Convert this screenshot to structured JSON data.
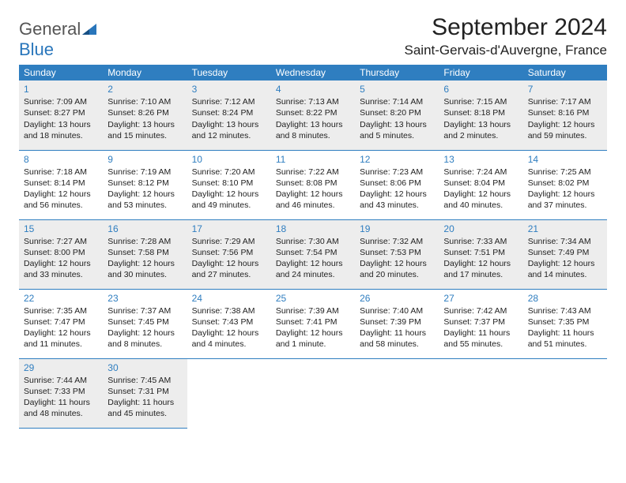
{
  "logo": {
    "word1": "General",
    "word2": "Blue"
  },
  "title": "September 2024",
  "location": "Saint-Gervais-d'Auvergne, France",
  "colors": {
    "header_bg": "#2f7ec0",
    "header_fg": "#ffffff",
    "shade_bg": "#ededed",
    "accent": "#2f7ec0",
    "logo_gray": "#555555",
    "logo_blue": "#2976bb"
  },
  "dow": [
    "Sunday",
    "Monday",
    "Tuesday",
    "Wednesday",
    "Thursday",
    "Friday",
    "Saturday"
  ],
  "layout": {
    "first_weekday_index": 0,
    "days_in_month": 30,
    "shaded_days": [
      1,
      2,
      3,
      4,
      5,
      6,
      7,
      15,
      16,
      17,
      18,
      19,
      20,
      21,
      29,
      30
    ]
  },
  "days": {
    "1": {
      "sunrise": "7:09 AM",
      "sunset": "8:27 PM",
      "daylight": "13 hours and 18 minutes."
    },
    "2": {
      "sunrise": "7:10 AM",
      "sunset": "8:26 PM",
      "daylight": "13 hours and 15 minutes."
    },
    "3": {
      "sunrise": "7:12 AM",
      "sunset": "8:24 PM",
      "daylight": "13 hours and 12 minutes."
    },
    "4": {
      "sunrise": "7:13 AM",
      "sunset": "8:22 PM",
      "daylight": "13 hours and 8 minutes."
    },
    "5": {
      "sunrise": "7:14 AM",
      "sunset": "8:20 PM",
      "daylight": "13 hours and 5 minutes."
    },
    "6": {
      "sunrise": "7:15 AM",
      "sunset": "8:18 PM",
      "daylight": "13 hours and 2 minutes."
    },
    "7": {
      "sunrise": "7:17 AM",
      "sunset": "8:16 PM",
      "daylight": "12 hours and 59 minutes."
    },
    "8": {
      "sunrise": "7:18 AM",
      "sunset": "8:14 PM",
      "daylight": "12 hours and 56 minutes."
    },
    "9": {
      "sunrise": "7:19 AM",
      "sunset": "8:12 PM",
      "daylight": "12 hours and 53 minutes."
    },
    "10": {
      "sunrise": "7:20 AM",
      "sunset": "8:10 PM",
      "daylight": "12 hours and 49 minutes."
    },
    "11": {
      "sunrise": "7:22 AM",
      "sunset": "8:08 PM",
      "daylight": "12 hours and 46 minutes."
    },
    "12": {
      "sunrise": "7:23 AM",
      "sunset": "8:06 PM",
      "daylight": "12 hours and 43 minutes."
    },
    "13": {
      "sunrise": "7:24 AM",
      "sunset": "8:04 PM",
      "daylight": "12 hours and 40 minutes."
    },
    "14": {
      "sunrise": "7:25 AM",
      "sunset": "8:02 PM",
      "daylight": "12 hours and 37 minutes."
    },
    "15": {
      "sunrise": "7:27 AM",
      "sunset": "8:00 PM",
      "daylight": "12 hours and 33 minutes."
    },
    "16": {
      "sunrise": "7:28 AM",
      "sunset": "7:58 PM",
      "daylight": "12 hours and 30 minutes."
    },
    "17": {
      "sunrise": "7:29 AM",
      "sunset": "7:56 PM",
      "daylight": "12 hours and 27 minutes."
    },
    "18": {
      "sunrise": "7:30 AM",
      "sunset": "7:54 PM",
      "daylight": "12 hours and 24 minutes."
    },
    "19": {
      "sunrise": "7:32 AM",
      "sunset": "7:53 PM",
      "daylight": "12 hours and 20 minutes."
    },
    "20": {
      "sunrise": "7:33 AM",
      "sunset": "7:51 PM",
      "daylight": "12 hours and 17 minutes."
    },
    "21": {
      "sunrise": "7:34 AM",
      "sunset": "7:49 PM",
      "daylight": "12 hours and 14 minutes."
    },
    "22": {
      "sunrise": "7:35 AM",
      "sunset": "7:47 PM",
      "daylight": "12 hours and 11 minutes."
    },
    "23": {
      "sunrise": "7:37 AM",
      "sunset": "7:45 PM",
      "daylight": "12 hours and 8 minutes."
    },
    "24": {
      "sunrise": "7:38 AM",
      "sunset": "7:43 PM",
      "daylight": "12 hours and 4 minutes."
    },
    "25": {
      "sunrise": "7:39 AM",
      "sunset": "7:41 PM",
      "daylight": "12 hours and 1 minute."
    },
    "26": {
      "sunrise": "7:40 AM",
      "sunset": "7:39 PM",
      "daylight": "11 hours and 58 minutes."
    },
    "27": {
      "sunrise": "7:42 AM",
      "sunset": "7:37 PM",
      "daylight": "11 hours and 55 minutes."
    },
    "28": {
      "sunrise": "7:43 AM",
      "sunset": "7:35 PM",
      "daylight": "11 hours and 51 minutes."
    },
    "29": {
      "sunrise": "7:44 AM",
      "sunset": "7:33 PM",
      "daylight": "11 hours and 48 minutes."
    },
    "30": {
      "sunrise": "7:45 AM",
      "sunset": "7:31 PM",
      "daylight": "11 hours and 45 minutes."
    }
  },
  "labels": {
    "sunrise_prefix": "Sunrise: ",
    "sunset_prefix": "Sunset: ",
    "daylight_prefix": "Daylight: "
  }
}
